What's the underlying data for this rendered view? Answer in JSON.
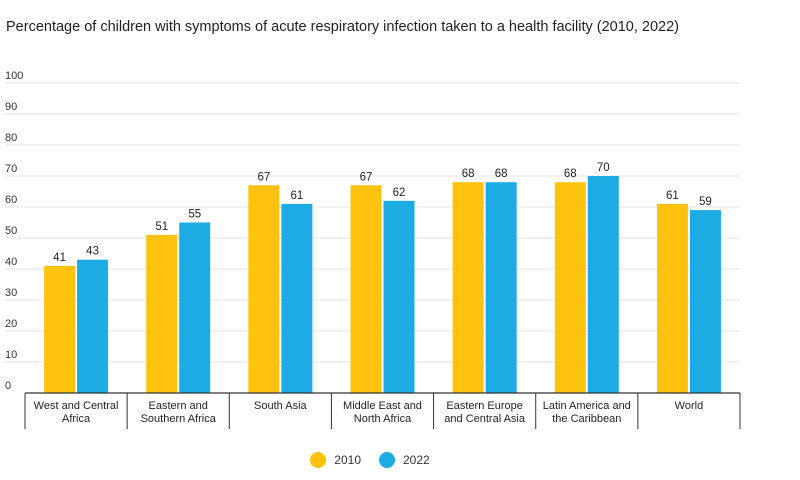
{
  "chart_data": {
    "type": "bar",
    "title": "Percentage of children with symptoms of acute respiratory infection taken to a health facility (2010, 2022)",
    "xlabel": "",
    "ylabel": "",
    "ylim": [
      0,
      100
    ],
    "yticks": [
      "0",
      "10",
      "20",
      "30",
      "40",
      "50",
      "60",
      "70",
      "80",
      "90",
      "100"
    ],
    "grid": true,
    "legend_position": "bottom",
    "categories": [
      [
        "West and Central",
        "Africa"
      ],
      [
        "Eastern and",
        "Southern Africa"
      ],
      [
        "South Asia"
      ],
      [
        "Middle East and",
        "North Africa"
      ],
      [
        "Eastern Europe",
        "and Central Asia"
      ],
      [
        "Latin America and",
        "the Caribbean"
      ],
      [
        "World"
      ]
    ],
    "series": [
      {
        "name": "2010",
        "color": "#FFC20E",
        "values": [
          41,
          51,
          67,
          67,
          68,
          68,
          61
        ]
      },
      {
        "name": "2022",
        "color": "#1CABE2",
        "values": [
          43,
          55,
          61,
          62,
          68,
          70,
          59
        ]
      }
    ]
  }
}
